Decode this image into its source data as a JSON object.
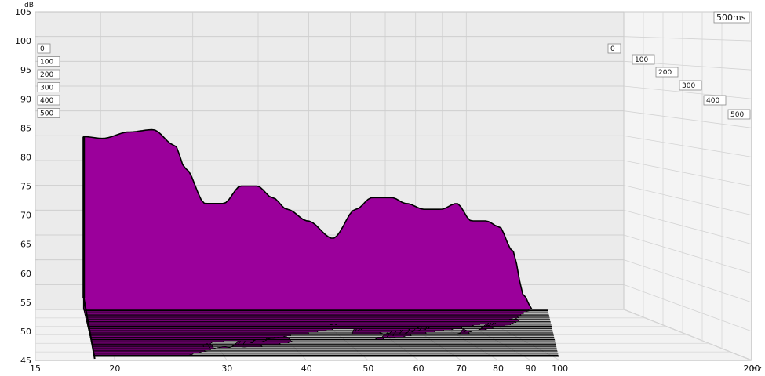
{
  "chart_data": {
    "type": "waterfall",
    "y_unit": "dB",
    "x_unit": "Hz",
    "time_unit_label": "500ms",
    "y_ticks": [
      "45",
      "50",
      "55",
      "60",
      "65",
      "70",
      "75",
      "80",
      "85",
      "90",
      "95",
      "100",
      "105"
    ],
    "x_ticks": [
      "15",
      "20",
      "30",
      "40",
      "50",
      "60",
      "70",
      "80",
      "90",
      "100",
      "200"
    ],
    "time_labels_left": [
      "0",
      "100",
      "200",
      "300",
      "400",
      "500"
    ],
    "time_labels_right": [
      "0",
      "100",
      "200",
      "300",
      "400",
      "500"
    ],
    "ylim": [
      45,
      105
    ],
    "xlim": [
      15,
      200
    ],
    "time_range_ms": [
      0,
      500
    ],
    "series_count": 40,
    "front_slice": {
      "name": "0",
      "x_hz": [
        18.7,
        20,
        22,
        24,
        26,
        27,
        29,
        31,
        33,
        35,
        37,
        39,
        42,
        46,
        50,
        53,
        57,
        60,
        64,
        68,
        72,
        76,
        80,
        84,
        88,
        92,
        97,
        100
      ],
      "db": [
        83.5,
        83.2,
        84.3,
        84.7,
        82,
        78,
        72,
        72,
        75,
        75,
        73,
        71,
        69,
        66,
        71,
        73,
        73,
        72,
        71,
        71,
        72,
        69,
        69,
        68,
        64,
        56,
        50,
        47
      ]
    }
  },
  "colors": {
    "fill": "#9b009b",
    "edge": "#000000",
    "panel": "#ebebeb",
    "panel_right": "#f3f3f3",
    "grid": "#c8c8c8"
  }
}
